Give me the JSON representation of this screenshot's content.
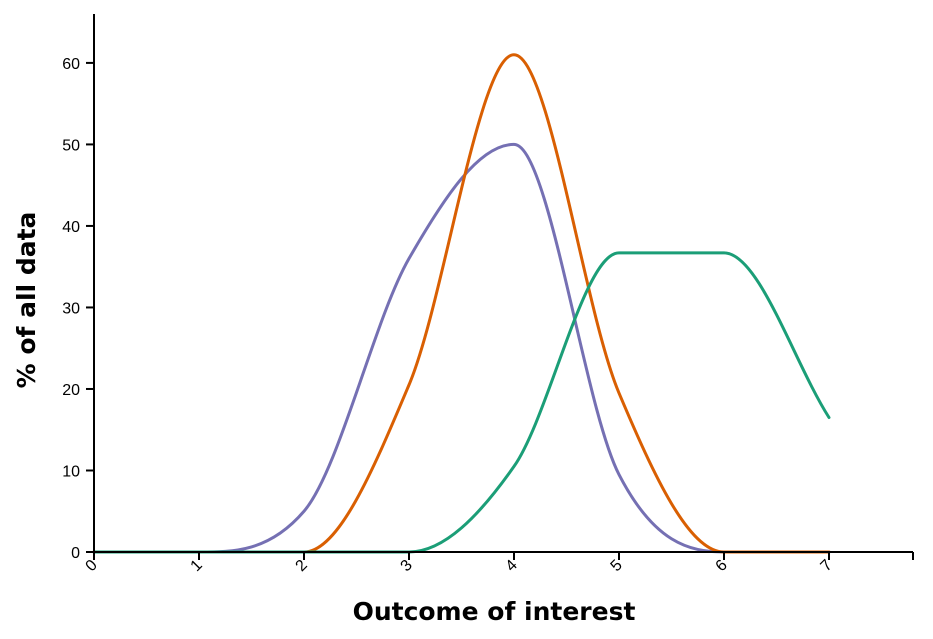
{
  "chart_data": {
    "type": "line",
    "title": "",
    "xlabel": "Outcome of interest",
    "ylabel": "% of all data",
    "xlim": [
      0,
      7.8
    ],
    "ylim": [
      0,
      66
    ],
    "xticks": [
      "0",
      "1",
      "2",
      "3",
      "4",
      "5",
      "6",
      "7"
    ],
    "yticks": [
      "0",
      "10",
      "20",
      "30",
      "40",
      "50",
      "60"
    ],
    "grid": false,
    "legend": "none",
    "series": [
      {
        "color": "#7570b3",
        "x": [
          0,
          1,
          2,
          3,
          4,
          5,
          6,
          7
        ],
        "y": [
          0,
          0,
          5,
          36,
          50,
          9.5,
          0,
          0
        ]
      },
      {
        "color": "#d95f02",
        "x": [
          0,
          1,
          2,
          3,
          4,
          5,
          6,
          7
        ],
        "y": [
          0,
          0,
          0,
          20.5,
          61,
          19.5,
          0,
          0
        ]
      },
      {
        "color": "#1b9e77",
        "x": [
          0,
          1,
          2,
          3,
          4,
          5,
          6,
          7
        ],
        "y": [
          0,
          0,
          0,
          0,
          10.5,
          36.7,
          36.7,
          16.5
        ]
      }
    ]
  }
}
